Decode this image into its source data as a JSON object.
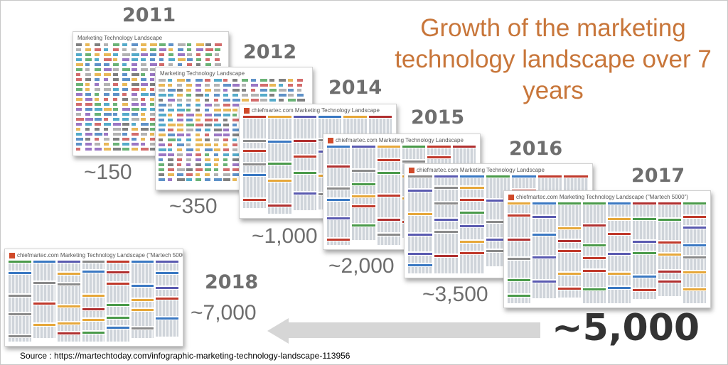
{
  "title": "Growth of the marketing technology landscape over 7 years",
  "milestones": [
    {
      "year": "2011",
      "count": "~150",
      "thumb_title": "Marketing Technology Landscape"
    },
    {
      "year": "2012",
      "count": "~350",
      "thumb_title": "Marketing Technology Landscape"
    },
    {
      "year": "2014",
      "count": "~1,000",
      "thumb_title": "chiefmartec.com Marketing Technology Landscape"
    },
    {
      "year": "2015",
      "count": "~2,000",
      "thumb_title": "chiefmartec.com Marketing Technology Landscape"
    },
    {
      "year": "2016",
      "count": "~3,500",
      "thumb_title": "chiefmartec.com Marketing Technology Landscape"
    },
    {
      "year": "2017",
      "count": "~5,000",
      "thumb_title": "chiefmartec.com Marketing Technology Landscape (\"Martech 5000\")"
    },
    {
      "year": "2018",
      "count": "~7,000",
      "thumb_title": "chiefmartec.com Marketing Technology Landscape (\"Martech 5000\")"
    }
  ],
  "arrow_icon": "left-arrow-icon",
  "source": "Source : https://martechtoday.com/infographic-marketing-technology-landscape-113956",
  "colors": {
    "title": "#c8763a",
    "year": "#6e6e6e",
    "arrow": "#d6d6d6"
  }
}
